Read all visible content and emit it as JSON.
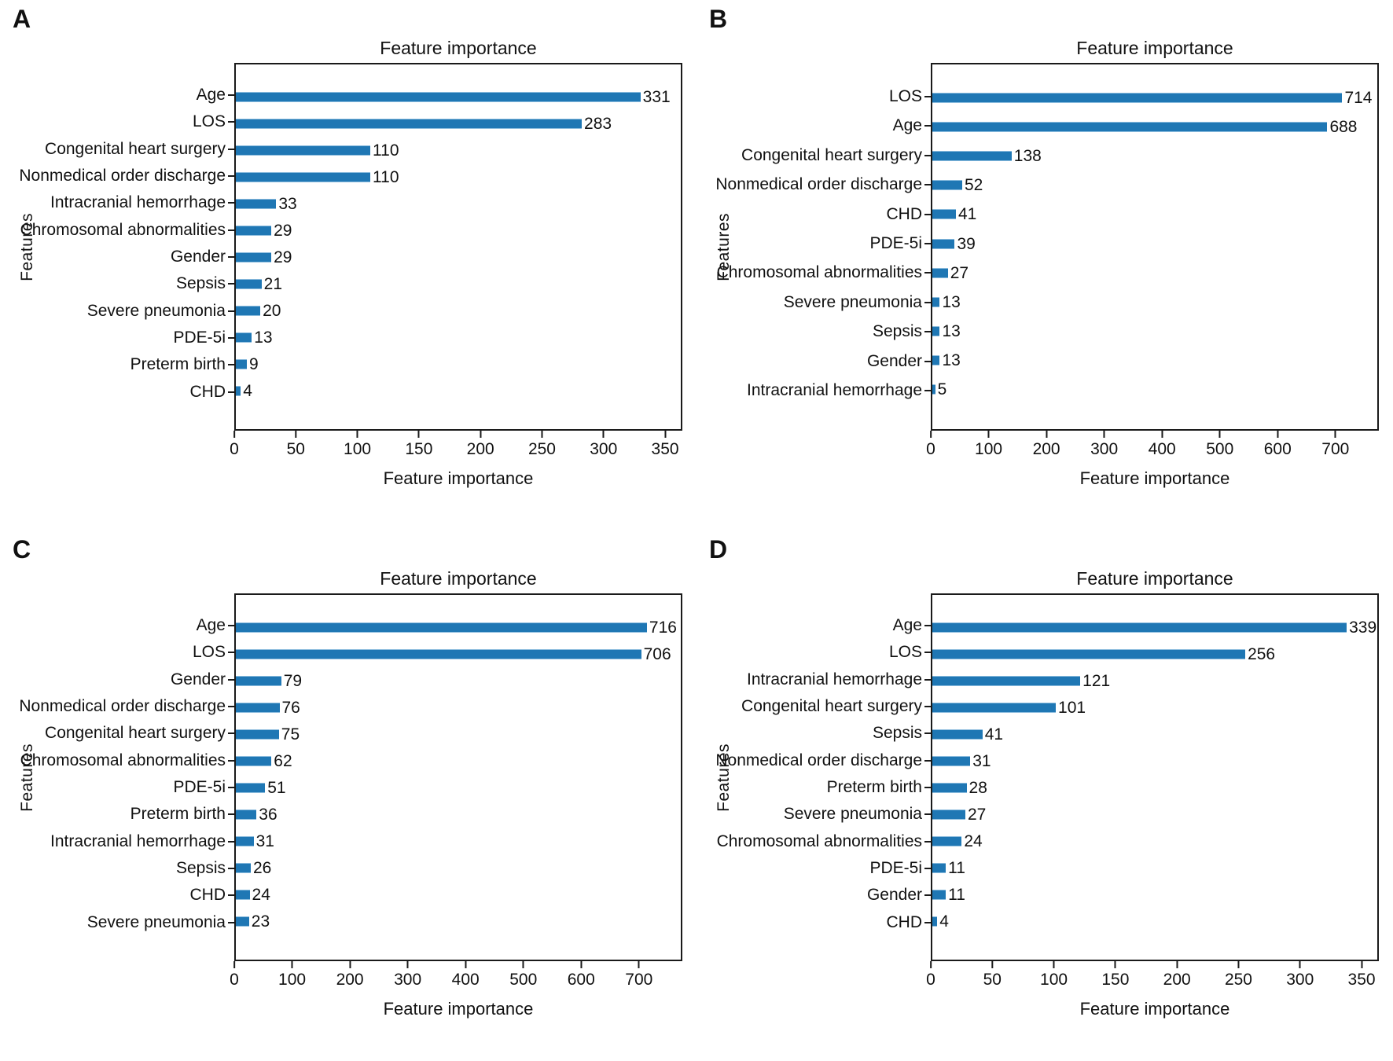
{
  "figure": {
    "bar_color": "#1f77b4",
    "bar_edge_color": "#8abbdd",
    "axis_color": "#1a1a1a",
    "background": "#ffffff"
  },
  "chart_data": [
    {
      "type": "bar",
      "orientation": "horizontal",
      "panel": "A",
      "title": "Feature importance",
      "xlabel": "Feature importance",
      "ylabel": "Features",
      "grid": false,
      "legend": null,
      "xlim": [
        0,
        364
      ],
      "xticks": [
        0,
        50,
        100,
        150,
        200,
        250,
        300,
        350
      ],
      "categories": [
        "Age",
        "LOS",
        "Congenital heart surgery",
        "Nonmedical order discharge",
        "Intracranial hemorrhage",
        "Chromosomal abnormalities",
        "Gender",
        "Sepsis",
        "Severe pneumonia",
        "PDE-5i",
        "Preterm birth",
        "CHD"
      ],
      "values": [
        331,
        283,
        110,
        110,
        33,
        29,
        29,
        21,
        20,
        13,
        9,
        4
      ]
    },
    {
      "type": "bar",
      "orientation": "horizontal",
      "panel": "B",
      "title": "Feature importance",
      "xlabel": "Feature importance",
      "ylabel": "Features",
      "grid": false,
      "legend": null,
      "xlim": [
        0,
        775
      ],
      "xticks": [
        0,
        100,
        200,
        300,
        400,
        500,
        600,
        700
      ],
      "categories": [
        "LOS",
        "Age",
        "Congenital heart surgery",
        "Nonmedical order discharge",
        "CHD",
        "PDE-5i",
        "Chromosomal abnormalities",
        "Severe pneumonia",
        "Sepsis",
        "Gender",
        "Intracranial hemorrhage"
      ],
      "values": [
        714,
        688,
        138,
        52,
        41,
        39,
        27,
        13,
        13,
        13,
        5
      ]
    },
    {
      "type": "bar",
      "orientation": "horizontal",
      "panel": "C",
      "title": "Feature importance",
      "xlabel": "Feature importance",
      "ylabel": "Features",
      "grid": false,
      "legend": null,
      "xlim": [
        0,
        775
      ],
      "xticks": [
        0,
        100,
        200,
        300,
        400,
        500,
        600,
        700
      ],
      "categories": [
        "Age",
        "LOS",
        "Gender",
        "Nonmedical order discharge",
        "Congenital heart surgery",
        "Chromosomal abnormalities",
        "PDE-5i",
        "Preterm birth",
        "Intracranial hemorrhage",
        "Sepsis",
        "CHD",
        "Severe pneumonia"
      ],
      "values": [
        716,
        706,
        79,
        76,
        75,
        62,
        51,
        36,
        31,
        26,
        24,
        23
      ]
    },
    {
      "type": "bar",
      "orientation": "horizontal",
      "panel": "D",
      "title": "Feature importance",
      "xlabel": "Feature importance",
      "ylabel": "Features",
      "grid": false,
      "legend": null,
      "xlim": [
        0,
        364
      ],
      "xticks": [
        0,
        50,
        100,
        150,
        200,
        250,
        300,
        350
      ],
      "categories": [
        "Age",
        "LOS",
        "Intracranial hemorrhage",
        "Congenital heart surgery",
        "Sepsis",
        "Nonmedical order discharge",
        "Preterm birth",
        "Severe pneumonia",
        "Chromosomal abnormalities",
        "PDE-5i",
        "Gender",
        "CHD"
      ],
      "values": [
        339,
        256,
        121,
        101,
        41,
        31,
        28,
        27,
        24,
        11,
        11,
        4
      ]
    }
  ]
}
